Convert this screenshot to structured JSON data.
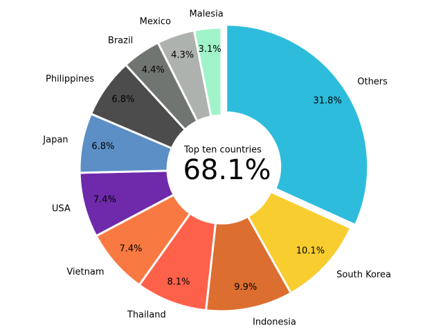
{
  "chart_data": {
    "type": "donut",
    "center_title": "Top ten countries",
    "center_label": "68.1%",
    "categories": [
      "Others",
      "South Korea",
      "Indonesia",
      "Thailand",
      "Vietnam",
      "USA",
      "Japan",
      "Philippines",
      "Brazil",
      "Mexico",
      "Malesia"
    ],
    "values": [
      31.8,
      10.1,
      9.9,
      8.1,
      7.4,
      7.4,
      6.8,
      6.8,
      4.4,
      4.3,
      3.1
    ],
    "value_labels": [
      "31.8%",
      "10.1%",
      "9.9%",
      "8.1%",
      "7.4%",
      "7.4%",
      "6.8%",
      "6.8%",
      "4.4%",
      "4.3%",
      "3.1%"
    ],
    "colors": [
      "#2ebcdc",
      "#f8cd30",
      "#dc6e30",
      "#fe614a",
      "#f87a42",
      "#6e2aaa",
      "#5b8fc6",
      "#4b4c4b",
      "#717571",
      "#aeb2ae",
      "#a0f3c8"
    ]
  }
}
